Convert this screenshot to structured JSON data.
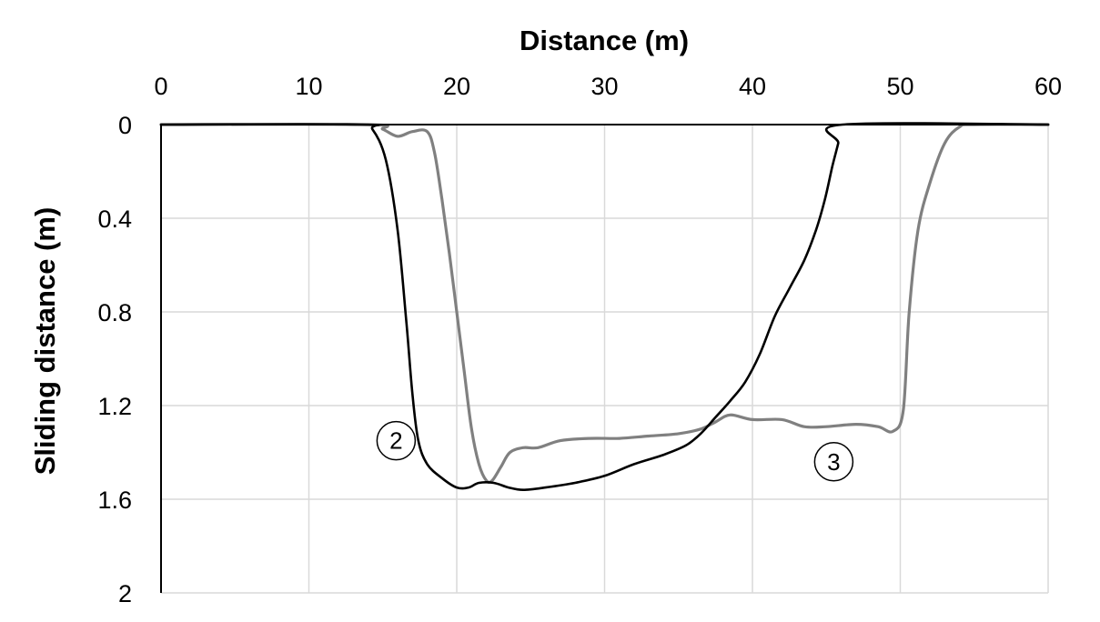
{
  "chart_data": {
    "type": "line",
    "title": "",
    "xlabel": "Distance (m)",
    "ylabel": "Sliding  distance (m)",
    "xlim": [
      0,
      60
    ],
    "ylim": [
      0,
      2
    ],
    "y_inverted": true,
    "x_axis_position": "top",
    "grid": true,
    "x_ticks": [
      0,
      10,
      20,
      30,
      40,
      50,
      60
    ],
    "x_tick_labels": [
      "0",
      "10",
      "20",
      "30",
      "40",
      "50",
      "60"
    ],
    "y_ticks": [
      0,
      0.4,
      0.8,
      1.2,
      1.6,
      2
    ],
    "y_tick_labels": [
      "0",
      "0.4",
      "0.8",
      "1.2",
      "1.6",
      "2"
    ],
    "series": [
      {
        "label": "2",
        "color": "#000000",
        "label_at": [
          15.9,
          1.35
        ],
        "x": [
          0,
          13.5,
          14.3,
          15.2,
          16.0,
          16.6,
          17.0,
          17.4,
          18.0,
          19.0,
          20.0,
          20.8,
          21.5,
          22.5,
          23.5,
          24.5,
          26.0,
          28.0,
          30.0,
          32.0,
          34.0,
          35.5,
          36.5,
          37.5,
          38.5,
          39.5,
          40.5,
          41.5,
          42.5,
          43.5,
          44.3,
          44.9,
          45.4,
          45.8,
          46.1,
          60
        ],
        "y": [
          0,
          0,
          0.02,
          0.15,
          0.45,
          0.85,
          1.15,
          1.35,
          1.45,
          1.51,
          1.55,
          1.55,
          1.53,
          1.53,
          1.55,
          1.56,
          1.55,
          1.53,
          1.5,
          1.45,
          1.41,
          1.37,
          1.32,
          1.25,
          1.18,
          1.1,
          0.98,
          0.82,
          0.7,
          0.58,
          0.45,
          0.32,
          0.18,
          0.08,
          0,
          0
        ]
      },
      {
        "label": "3",
        "color": "#808080",
        "label_at": [
          45.5,
          1.44
        ],
        "x": [
          0,
          14.0,
          15.0,
          16.0,
          17.0,
          18.0,
          18.5,
          19.0,
          19.5,
          20.0,
          20.5,
          21.0,
          21.5,
          22.0,
          22.4,
          23.0,
          23.6,
          24.5,
          25.5,
          27.0,
          29.0,
          31.0,
          33.0,
          35.0,
          36.5,
          37.5,
          38.5,
          40.0,
          42.0,
          43.5,
          45.0,
          47.0,
          48.5,
          49.5,
          50.2,
          50.6,
          51.2,
          52.0,
          53.0,
          54.0,
          55.0,
          60
        ],
        "y": [
          0,
          0,
          0.02,
          0.05,
          0.03,
          0.03,
          0.12,
          0.32,
          0.55,
          0.8,
          1.05,
          1.3,
          1.45,
          1.52,
          1.52,
          1.46,
          1.4,
          1.38,
          1.38,
          1.35,
          1.34,
          1.34,
          1.33,
          1.32,
          1.3,
          1.27,
          1.24,
          1.26,
          1.26,
          1.29,
          1.29,
          1.28,
          1.29,
          1.31,
          1.22,
          0.8,
          0.45,
          0.25,
          0.08,
          0.01,
          0,
          0
        ]
      }
    ]
  }
}
